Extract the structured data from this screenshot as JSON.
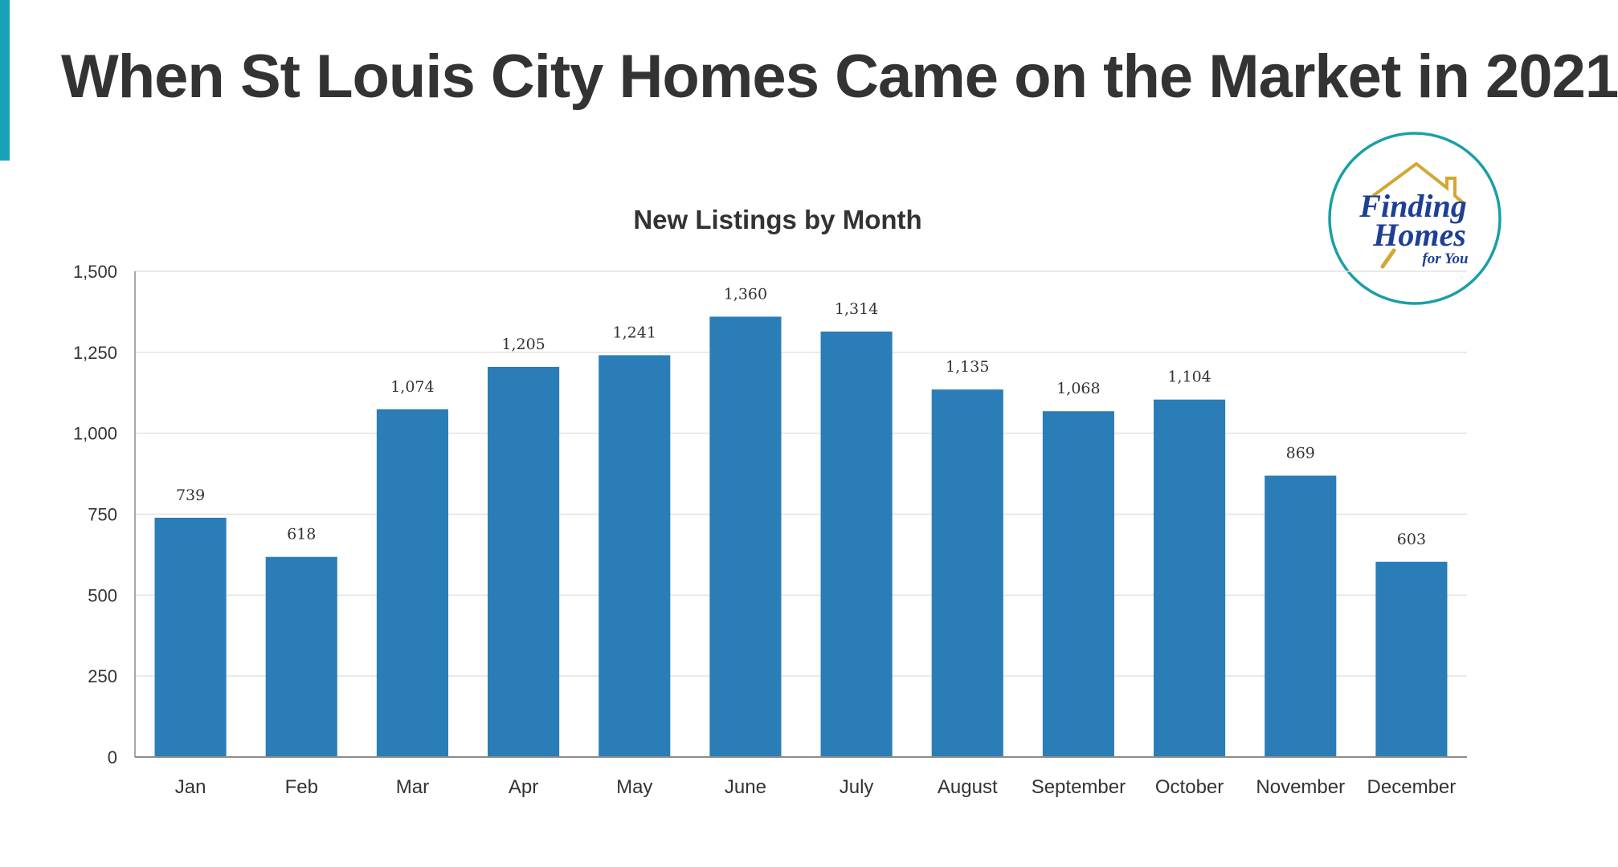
{
  "slide": {
    "title": "When St Louis City Homes Came on the Market in 2021"
  },
  "logo": {
    "line1": "Finding",
    "line2": "Homes",
    "line3": "for You",
    "ring_color": "#1a9fa6",
    "text_color": "#1d3f95",
    "roof_color": "#d4a632"
  },
  "colors": {
    "accent": "#17a2b8",
    "bar": "#2a7db7",
    "grid": "#e2e2e2",
    "axis": "#8c8c8c",
    "text": "#333333"
  },
  "chart_data": {
    "type": "bar",
    "title": "New Listings by Month",
    "xlabel": "",
    "ylabel": "",
    "categories": [
      "Jan",
      "Feb",
      "Mar",
      "Apr",
      "May",
      "June",
      "July",
      "August",
      "September",
      "October",
      "November",
      "December"
    ],
    "values": [
      739,
      618,
      1074,
      1205,
      1241,
      1360,
      1314,
      1135,
      1068,
      1104,
      869,
      603
    ],
    "value_labels": [
      "739",
      "618",
      "1,074",
      "1,205",
      "1,241",
      "1,360",
      "1,314",
      "1,135",
      "1,068",
      "1,104",
      "869",
      "603"
    ],
    "ylim": [
      0,
      1500
    ],
    "yticks": [
      0,
      250,
      500,
      750,
      1000,
      1250,
      1500
    ],
    "ytick_labels": [
      "0",
      "250",
      "500",
      "750",
      "1,000",
      "1,250",
      "1,500"
    ],
    "grid": true,
    "legend": "none"
  }
}
